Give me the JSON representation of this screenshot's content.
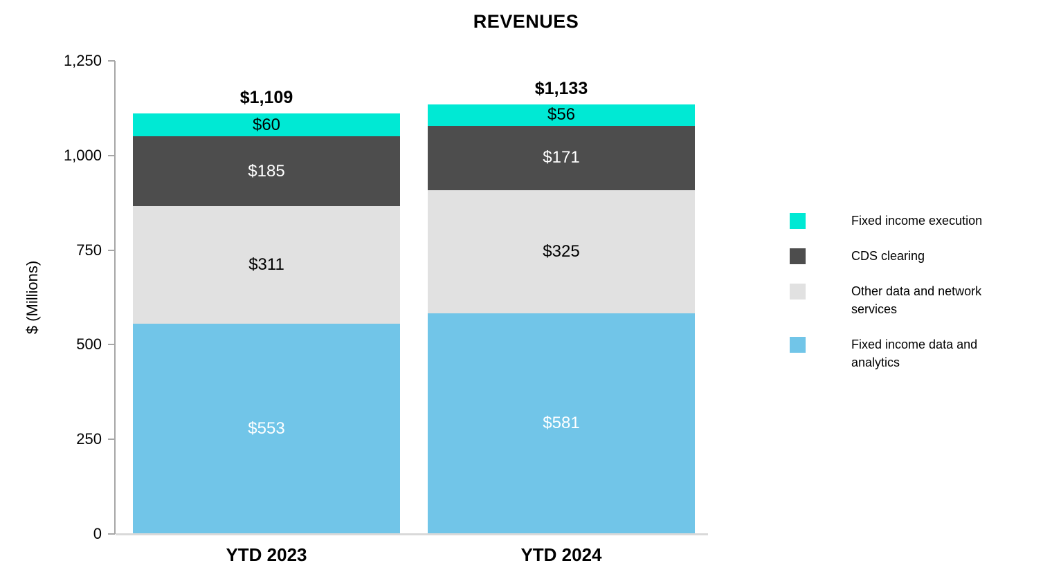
{
  "chart_data": {
    "type": "bar",
    "stacked": true,
    "title": "REVENUES",
    "xlabel": "",
    "ylabel": "$ (Millions)",
    "ylim": [
      0,
      1250
    ],
    "grid": false,
    "categories": [
      "YTD 2023",
      "YTD 2024"
    ],
    "series": [
      {
        "name": "Fixed income data and analytics",
        "color": "#71c5e8",
        "label_color": "#ffffff",
        "values": [
          553,
          581
        ],
        "labels": [
          "$553",
          "$581"
        ]
      },
      {
        "name": "Other data and network services",
        "color": "#e1e1e1",
        "label_color": "#000000",
        "values": [
          311,
          325
        ],
        "labels": [
          "$311",
          "$325"
        ]
      },
      {
        "name": "CDS clearing",
        "color": "#4d4d4d",
        "label_color": "#ffffff",
        "values": [
          185,
          171
        ],
        "labels": [
          "$185",
          "$171"
        ]
      },
      {
        "name": "Fixed income execution",
        "color": "#00e9d4",
        "label_color": "#000000",
        "values": [
          60,
          56
        ],
        "labels": [
          "$60",
          "$56"
        ]
      }
    ],
    "totals": {
      "values": [
        1109,
        1133
      ],
      "labels": [
        "$1,109",
        "$1,133"
      ]
    },
    "y_axis": {
      "tick_values": [
        0,
        250,
        500,
        750,
        1000,
        1250
      ],
      "tick_labels": [
        "0",
        "250",
        "500",
        "750",
        "1,000",
        "1,250"
      ]
    },
    "legend": {
      "position": "right",
      "items": [
        {
          "label": "Fixed income execution",
          "color": "#00e9d4"
        },
        {
          "label": "CDS clearing",
          "color": "#4d4d4d"
        },
        {
          "label": "Other data and network services",
          "color": "#e1e1e1"
        },
        {
          "label": "Fixed income data and analytics",
          "color": "#71c5e8"
        }
      ]
    },
    "axis_colors": {
      "axis_line": "#a6a6a6",
      "baseline": "#d9d9d9"
    }
  }
}
